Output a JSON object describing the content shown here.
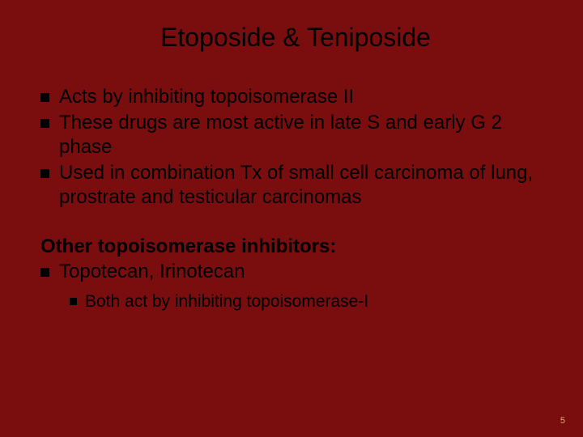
{
  "slide": {
    "background_color": "#7a0d0d",
    "text_color": "#000000",
    "title": "Etoposide & Teniposide",
    "title_fontsize": 32,
    "body_fontsize": 24,
    "sub_fontsize": 21,
    "bullets": [
      "Acts by inhibiting topoisomerase II",
      "These drugs are most active in late S and early G 2 phase",
      "Used in combination Tx of small cell carcinoma of lung, prostrate and testicular carcinomas"
    ],
    "sub_heading": "Other topoisomerase inhibitors:",
    "sub_bullets": [
      "Topotecan, Irinotecan"
    ],
    "nested_bullets": [
      "Both act by inhibiting topoisomerase-I"
    ],
    "page_number": "5",
    "page_number_color": "#d8b080"
  }
}
